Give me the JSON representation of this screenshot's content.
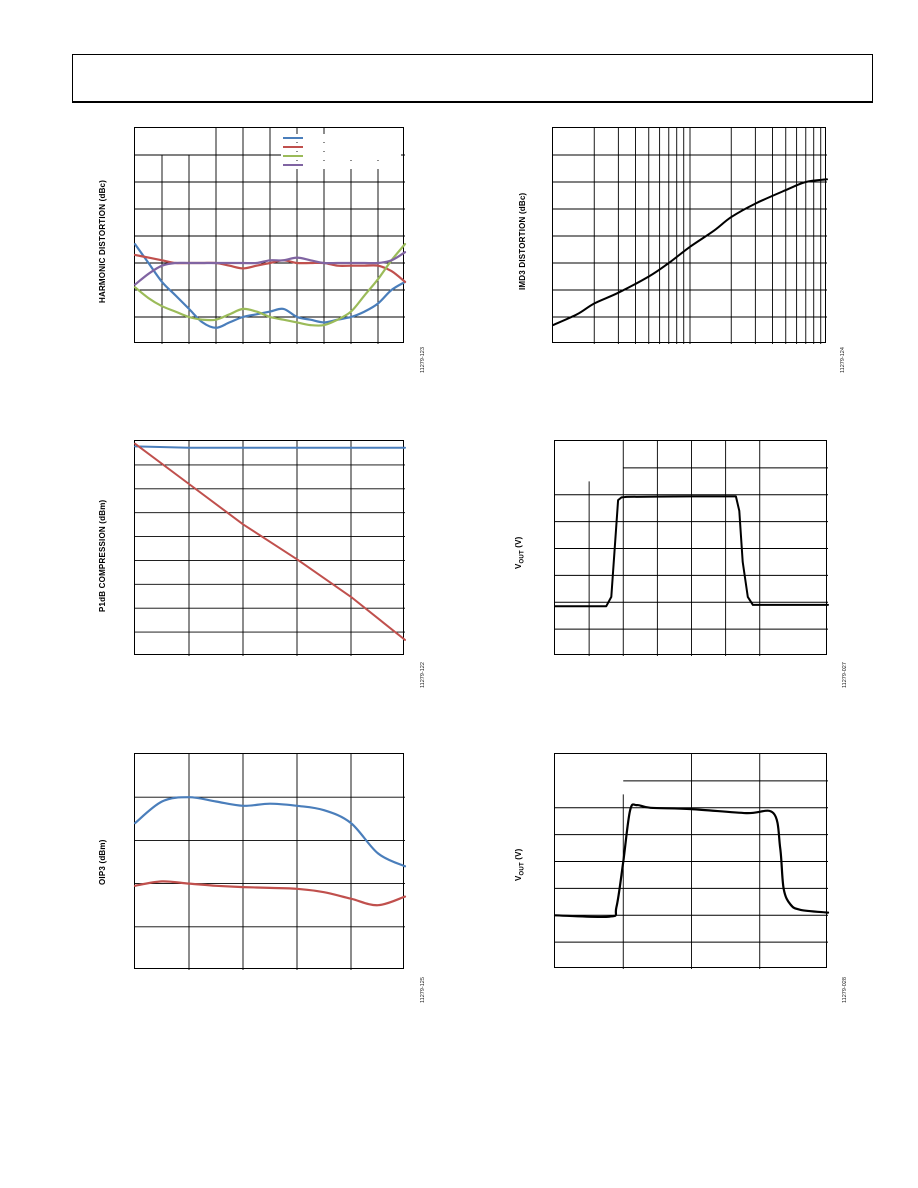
{
  "page": {
    "header": {
      "title": ""
    }
  },
  "charts": {
    "hd": {
      "ylabel": "HARMONIC DISTORTION (dBc)",
      "fig_id": "11279-123",
      "colors": {
        "blue": "#4a7ebb",
        "red": "#c0504d",
        "green": "#9bbb59",
        "purple": "#8064a2"
      }
    },
    "imd3": {
      "ylabel": "IMD3 DISTORTION (dBc)",
      "fig_id": "11279-124"
    },
    "p1db": {
      "ylabel": "P1dB COMPRESSION (dBm)",
      "fig_id": "11279-122"
    },
    "vout1": {
      "ylabel_main": "V",
      "ylabel_sub": "OUT",
      "ylabel_tail": " (V)",
      "fig_id": "11279-027"
    },
    "oip3": {
      "ylabel": "OIP3 (dBm)",
      "fig_id": "11279-125"
    },
    "vout2": {
      "ylabel_main": "V",
      "ylabel_sub": "OUT",
      "ylabel_tail": " (V)",
      "fig_id": "11279-028"
    }
  },
  "chart_data": [
    {
      "type": "line",
      "title": "",
      "ylabel": "HARMONIC DISTORTION (dBc)",
      "x_range": [
        0,
        10
      ],
      "y_range": [
        0,
        8
      ],
      "grid": true,
      "series": [
        {
          "color": "#4a7ebb",
          "x": [
            0,
            0.5,
            1,
            1.5,
            2,
            2.5,
            3,
            3.5,
            4,
            4.5,
            5,
            5.5,
            6,
            6.5,
            7,
            7.5,
            8,
            8.5,
            9,
            9.5,
            10
          ],
          "y": [
            3.7,
            3.0,
            2.3,
            1.8,
            1.3,
            0.8,
            0.6,
            0.8,
            1.0,
            1.1,
            1.2,
            1.3,
            1.0,
            0.9,
            0.8,
            0.9,
            1.0,
            1.2,
            1.5,
            2.0,
            2.3
          ]
        },
        {
          "color": "#c0504d",
          "x": [
            0,
            0.5,
            1,
            1.5,
            2,
            2.5,
            3,
            3.5,
            4,
            4.5,
            5,
            5.5,
            6,
            6.5,
            7,
            7.5,
            8,
            8.5,
            9,
            9.5,
            10
          ],
          "y": [
            3.3,
            3.2,
            3.1,
            3.0,
            3.0,
            3.0,
            3.0,
            2.9,
            2.8,
            2.9,
            3.0,
            3.1,
            3.0,
            3.0,
            3.0,
            2.9,
            2.9,
            2.9,
            2.9,
            2.7,
            2.3
          ]
        },
        {
          "color": "#9bbb59",
          "x": [
            0,
            0.5,
            1,
            1.5,
            2,
            2.5,
            3,
            3.5,
            4,
            4.5,
            5,
            5.5,
            6,
            6.5,
            7,
            7.5,
            8,
            8.5,
            9,
            9.5,
            10
          ],
          "y": [
            2.1,
            1.7,
            1.4,
            1.2,
            1.0,
            0.9,
            0.9,
            1.1,
            1.3,
            1.2,
            1.0,
            0.9,
            0.8,
            0.7,
            0.7,
            0.9,
            1.2,
            1.8,
            2.4,
            3.1,
            3.7
          ]
        },
        {
          "color": "#8064a2",
          "x": [
            0,
            0.5,
            1,
            1.5,
            2,
            2.5,
            3,
            3.5,
            4,
            4.5,
            5,
            5.5,
            6,
            6.5,
            7,
            7.5,
            8,
            8.5,
            9,
            9.5,
            10
          ],
          "y": [
            2.2,
            2.6,
            2.9,
            3.0,
            3.0,
            3.0,
            3.0,
            3.0,
            3.0,
            3.0,
            3.1,
            3.1,
            3.2,
            3.1,
            3.0,
            3.0,
            3.0,
            3.0,
            3.0,
            3.1,
            3.4
          ]
        }
      ]
    },
    {
      "type": "line",
      "title": "",
      "ylabel": "IMD3 DISTORTION (dBc)",
      "x_scale": "log",
      "x_range": [
        1,
        100
      ],
      "y_range": [
        0,
        8
      ],
      "grid": true,
      "series": [
        {
          "color": "#000000",
          "x": [
            1,
            1.5,
            2,
            3,
            5,
            7,
            10,
            15,
            20,
            30,
            50,
            70,
            100
          ],
          "y": [
            0.7,
            1.1,
            1.5,
            1.9,
            2.5,
            3.0,
            3.6,
            4.2,
            4.7,
            5.2,
            5.7,
            6.0,
            6.1
          ]
        }
      ]
    },
    {
      "type": "line",
      "title": "",
      "ylabel": "P1dB COMPRESSION (dBm)",
      "x_range": [
        0,
        5
      ],
      "y_range": [
        0,
        8
      ],
      "grid": true,
      "series": [
        {
          "color": "#4a7ebb",
          "x": [
            0,
            1,
            2,
            3,
            4,
            5
          ],
          "y": [
            7.8,
            7.75,
            7.75,
            7.75,
            7.75,
            7.75
          ]
        },
        {
          "color": "#c0504d",
          "x": [
            0,
            1,
            2,
            3,
            4,
            5
          ],
          "y": [
            7.9,
            6.4,
            4.9,
            3.6,
            2.2,
            0.6
          ]
        }
      ]
    },
    {
      "type": "line",
      "title": "",
      "ylabel": "VOUT (V)",
      "x_range": [
        0,
        8
      ],
      "y_range": [
        0,
        8
      ],
      "grid": true,
      "series": [
        {
          "color": "#000000",
          "x": [
            0,
            1.5,
            1.65,
            1.75,
            1.85,
            1.95,
            2.1,
            3,
            4,
            5,
            5.3,
            5.4,
            5.5,
            5.65,
            5.8,
            6.5,
            8
          ],
          "y": [
            1.85,
            1.85,
            2.2,
            4.0,
            5.8,
            5.9,
            5.92,
            5.93,
            5.94,
            5.94,
            5.94,
            5.4,
            3.5,
            2.2,
            1.9,
            1.9,
            1.9
          ]
        }
      ]
    },
    {
      "type": "line",
      "title": "",
      "ylabel": "OIP3 (dBm)",
      "x_range": [
        0,
        5
      ],
      "y_range": [
        0,
        5
      ],
      "grid": true,
      "series": [
        {
          "color": "#4a7ebb",
          "x": [
            0,
            0.5,
            1,
            1.5,
            2,
            2.5,
            3,
            3.5,
            4,
            4.5,
            5
          ],
          "y": [
            3.4,
            3.9,
            4.0,
            3.9,
            3.8,
            3.85,
            3.8,
            3.7,
            3.4,
            2.7,
            2.4
          ]
        },
        {
          "color": "#c0504d",
          "x": [
            0,
            0.5,
            1,
            1.5,
            2,
            2.5,
            3,
            3.5,
            4,
            4.5,
            5
          ],
          "y": [
            1.95,
            2.05,
            2.0,
            1.95,
            1.92,
            1.9,
            1.88,
            1.8,
            1.65,
            1.5,
            1.7
          ]
        }
      ]
    },
    {
      "type": "line",
      "title": "",
      "ylabel": "VOUT (V)",
      "x_range": [
        0,
        4
      ],
      "y_range": [
        0,
        8
      ],
      "grid": true,
      "series": [
        {
          "color": "#000000",
          "x": [
            0,
            0.8,
            0.9,
            1.0,
            1.1,
            1.2,
            1.4,
            2,
            2.8,
            3.2,
            3.3,
            3.35,
            3.45,
            3.6,
            4
          ],
          "y": [
            2.0,
            1.95,
            2.3,
            4.0,
            5.9,
            6.1,
            6.0,
            5.95,
            5.8,
            5.8,
            4.5,
            3.0,
            2.4,
            2.2,
            2.1
          ]
        }
      ]
    }
  ]
}
